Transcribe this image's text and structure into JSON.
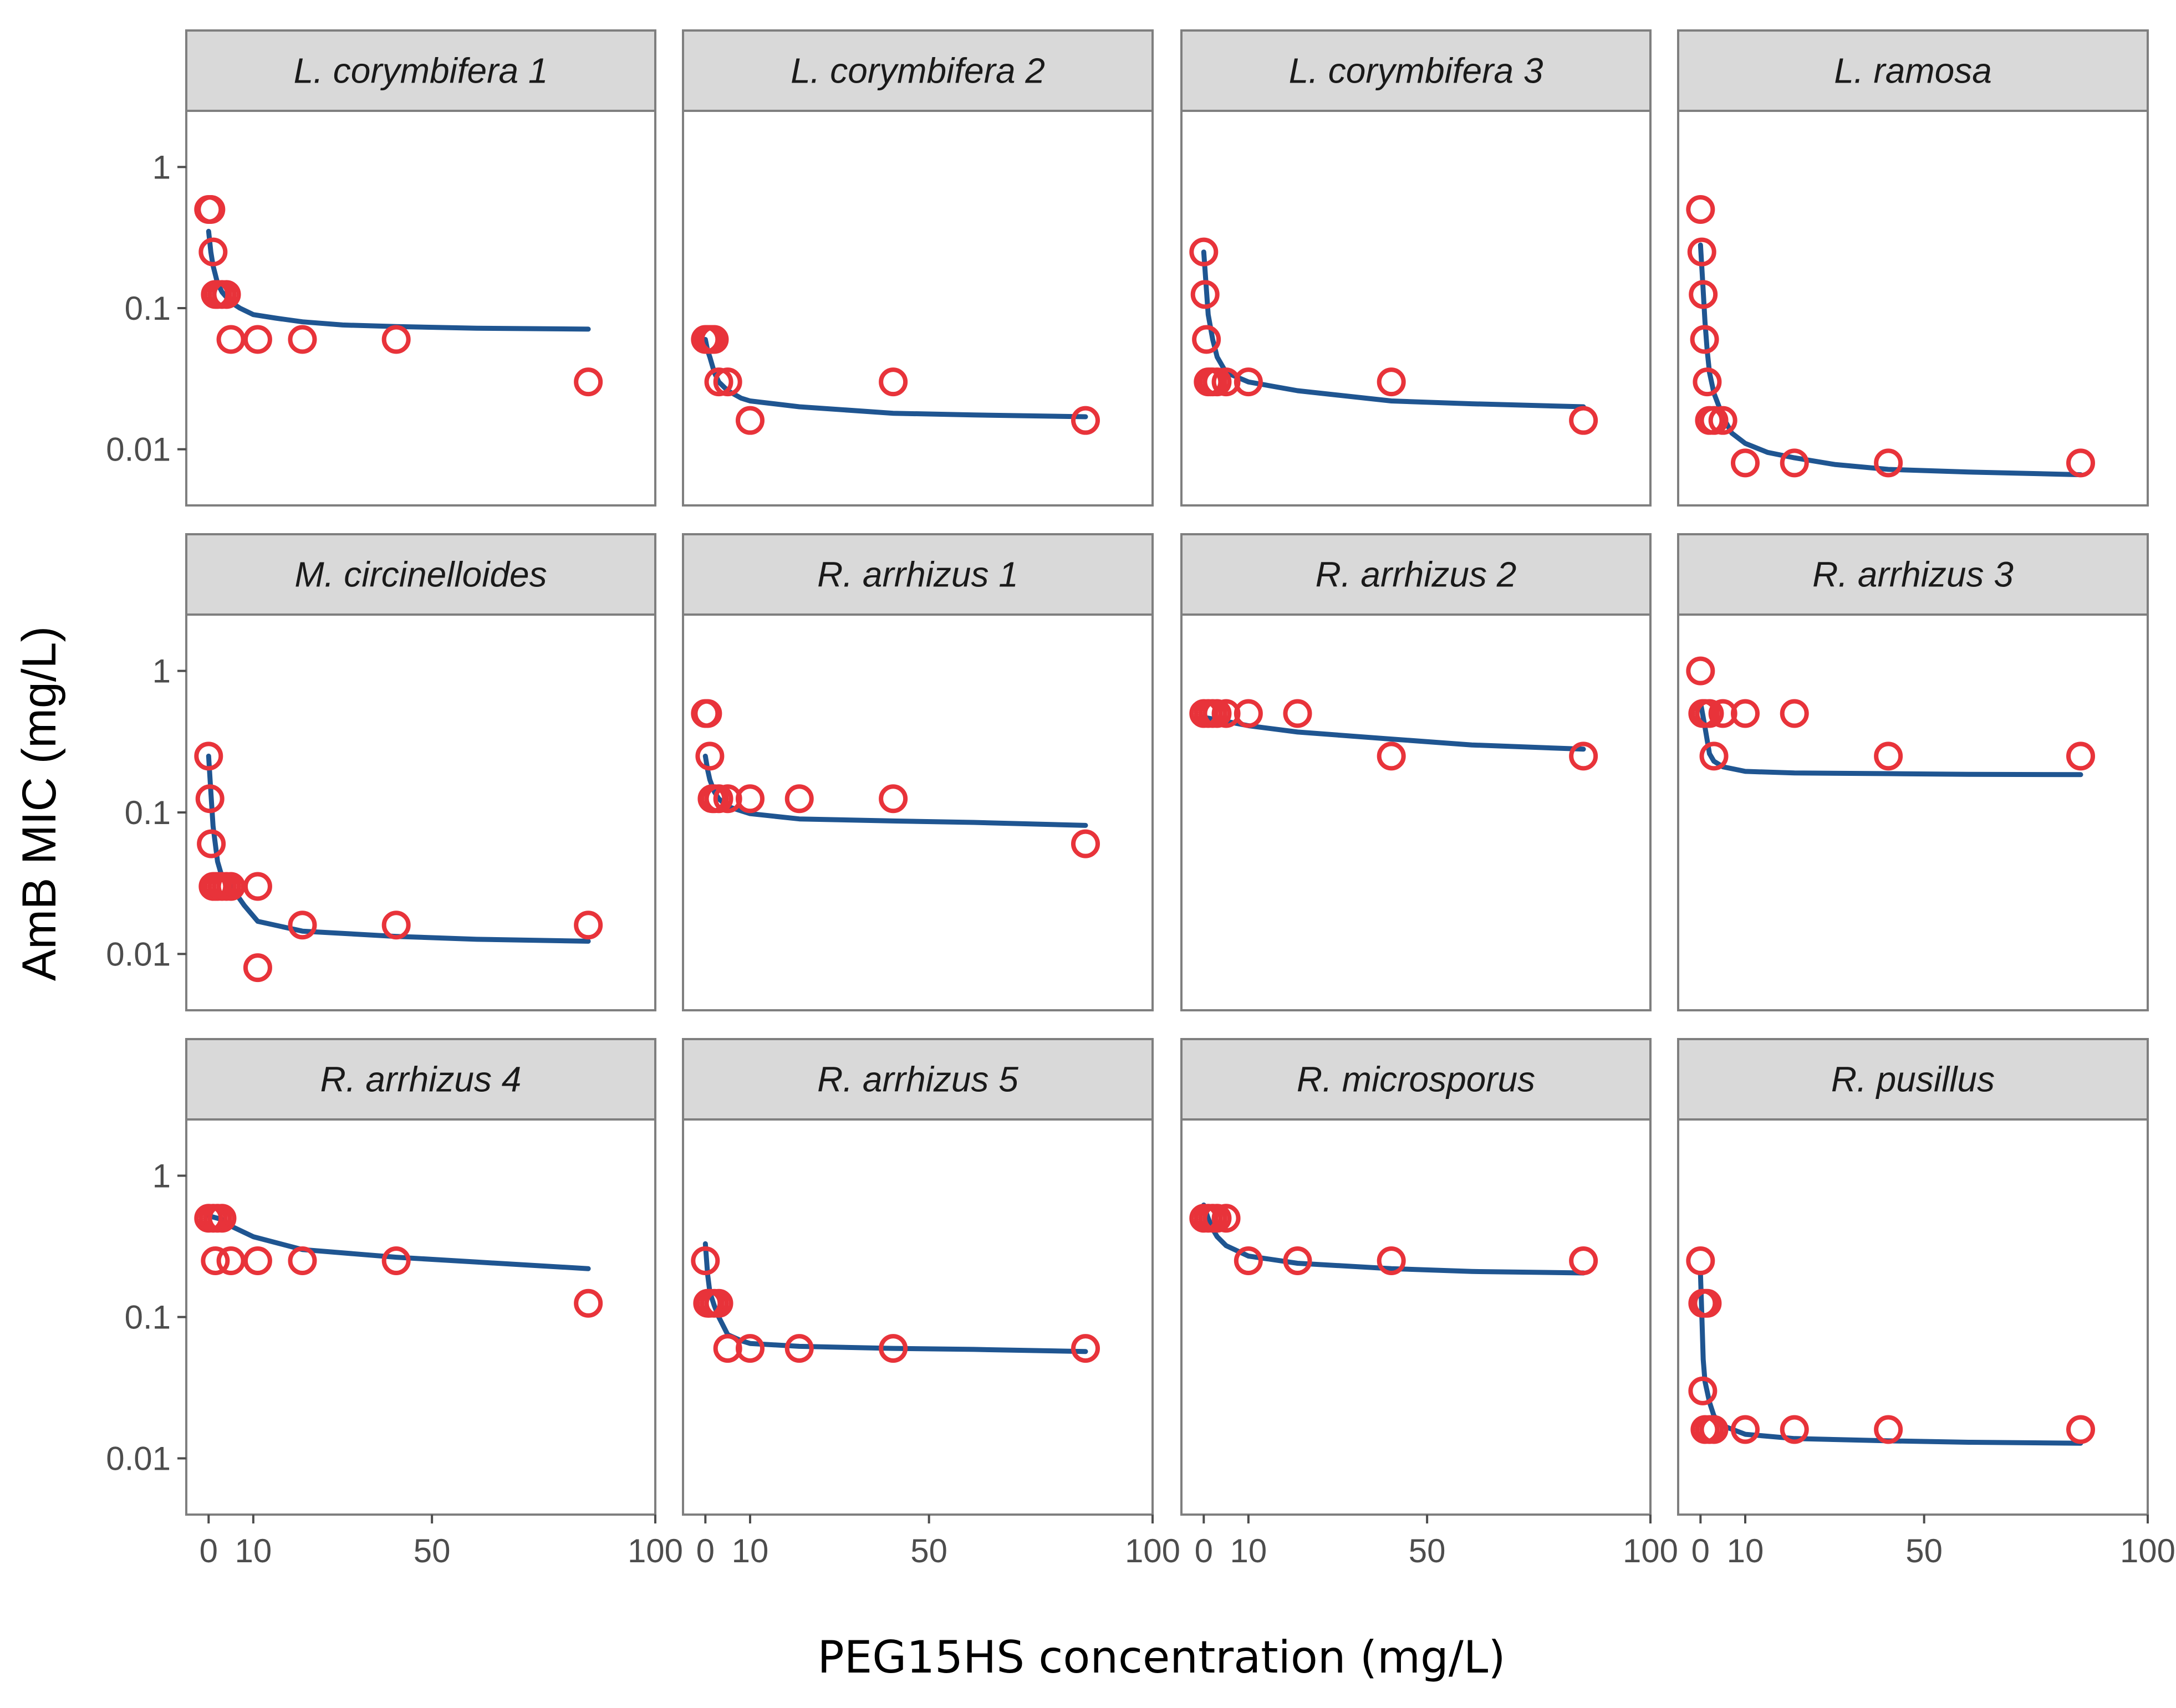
{
  "chart_data": {
    "type": "scatter",
    "layout": "facet-grid 3x4",
    "xlabel": "PEG15HS concentration (mg/L)",
    "ylabel": "AmB MIC (mg/L)",
    "xlim": [
      -5,
      100
    ],
    "ylim": [
      0.004,
      2.5
    ],
    "yscale": "log",
    "x_ticks": [
      0,
      10,
      50,
      100
    ],
    "x_tick_labels": [
      "0",
      "10",
      "50",
      "100"
    ],
    "y_ticks": [
      0.01,
      0.1,
      1
    ],
    "y_tick_labels": [
      "0.01",
      "0.1",
      "1"
    ],
    "colors": {
      "points": "#e8333a",
      "fit_line": "#1f5591",
      "strip_fill": "#d9d9d9",
      "strip_border": "#7f7f7f",
      "panel_border": "#7f7f7f",
      "tick": "#4d4d4d"
    },
    "panels": [
      {
        "title": "L. corymbifera 1",
        "points": [
          [
            0,
            0.5
          ],
          [
            0.5,
            0.5
          ],
          [
            1,
            0.25
          ],
          [
            1.5,
            0.125
          ],
          [
            2,
            0.125
          ],
          [
            3,
            0.125
          ],
          [
            4,
            0.125
          ],
          [
            5,
            0.06
          ],
          [
            11,
            0.06
          ],
          [
            21,
            0.06
          ],
          [
            42,
            0.06
          ],
          [
            85,
            0.03
          ]
        ],
        "fit": [
          [
            0,
            0.35
          ],
          [
            0.5,
            0.25
          ],
          [
            1,
            0.2
          ],
          [
            2,
            0.15
          ],
          [
            3,
            0.13
          ],
          [
            5,
            0.11
          ],
          [
            7,
            0.1
          ],
          [
            10,
            0.09
          ],
          [
            15,
            0.085
          ],
          [
            21,
            0.08
          ],
          [
            30,
            0.076
          ],
          [
            42,
            0.074
          ],
          [
            60,
            0.072
          ],
          [
            85,
            0.071
          ]
        ]
      },
      {
        "title": "L. corymbifera 2",
        "points": [
          [
            0,
            0.06
          ],
          [
            0.5,
            0.06
          ],
          [
            1,
            0.06
          ],
          [
            1.5,
            0.06
          ],
          [
            2,
            0.06
          ],
          [
            3,
            0.03
          ],
          [
            5,
            0.03
          ],
          [
            10,
            0.016
          ],
          [
            42,
            0.03
          ],
          [
            85,
            0.016
          ]
        ],
        "fit": [
          [
            0,
            0.06
          ],
          [
            0.5,
            0.05
          ],
          [
            1,
            0.045
          ],
          [
            2,
            0.035
          ],
          [
            3,
            0.03
          ],
          [
            5,
            0.026
          ],
          [
            8,
            0.023
          ],
          [
            10,
            0.022
          ],
          [
            21,
            0.02
          ],
          [
            42,
            0.018
          ],
          [
            60,
            0.0175
          ],
          [
            85,
            0.017
          ]
        ]
      },
      {
        "title": "L. corymbifera 3",
        "points": [
          [
            0,
            0.25
          ],
          [
            0.3,
            0.125
          ],
          [
            0.6,
            0.06
          ],
          [
            1,
            0.03
          ],
          [
            1.5,
            0.03
          ],
          [
            2,
            0.03
          ],
          [
            3,
            0.03
          ],
          [
            5,
            0.03
          ],
          [
            10,
            0.03
          ],
          [
            42,
            0.03
          ],
          [
            85,
            0.016
          ]
        ],
        "fit": [
          [
            0,
            0.25
          ],
          [
            0.5,
            0.15
          ],
          [
            1,
            0.09
          ],
          [
            2,
            0.06
          ],
          [
            3,
            0.045
          ],
          [
            5,
            0.035
          ],
          [
            10,
            0.03
          ],
          [
            21,
            0.026
          ],
          [
            42,
            0.022
          ],
          [
            60,
            0.021
          ],
          [
            85,
            0.02
          ]
        ]
      },
      {
        "title": "L. ramosa",
        "points": [
          [
            0,
            0.5
          ],
          [
            0.3,
            0.25
          ],
          [
            0.6,
            0.125
          ],
          [
            0.9,
            0.06
          ],
          [
            1.5,
            0.03
          ],
          [
            2,
            0.016
          ],
          [
            3,
            0.016
          ],
          [
            5,
            0.016
          ],
          [
            10,
            0.008
          ],
          [
            21,
            0.008
          ],
          [
            42,
            0.008
          ],
          [
            85,
            0.008
          ]
        ],
        "fit": [
          [
            0,
            0.28
          ],
          [
            0.5,
            0.15
          ],
          [
            1,
            0.08
          ],
          [
            1.5,
            0.05
          ],
          [
            2,
            0.035
          ],
          [
            3,
            0.025
          ],
          [
            5,
            0.017
          ],
          [
            7,
            0.013
          ],
          [
            10,
            0.011
          ],
          [
            15,
            0.0095
          ],
          [
            21,
            0.0087
          ],
          [
            30,
            0.0078
          ],
          [
            42,
            0.0072
          ],
          [
            60,
            0.0069
          ],
          [
            85,
            0.0066
          ]
        ]
      },
      {
        "title": "M. circinelloides",
        "points": [
          [
            0,
            0.25
          ],
          [
            0.3,
            0.125
          ],
          [
            0.6,
            0.06
          ],
          [
            1,
            0.03
          ],
          [
            1.5,
            0.03
          ],
          [
            2,
            0.03
          ],
          [
            3,
            0.03
          ],
          [
            4,
            0.03
          ],
          [
            5,
            0.03
          ],
          [
            11,
            0.03
          ],
          [
            11,
            0.008
          ],
          [
            21,
            0.016
          ],
          [
            42,
            0.016
          ],
          [
            85,
            0.016
          ]
        ],
        "fit": [
          [
            0,
            0.25
          ],
          [
            0.5,
            0.14
          ],
          [
            1,
            0.08
          ],
          [
            2,
            0.045
          ],
          [
            3,
            0.035
          ],
          [
            5,
            0.03
          ],
          [
            8,
            0.022
          ],
          [
            11,
            0.017
          ],
          [
            21,
            0.0145
          ],
          [
            42,
            0.0133
          ],
          [
            60,
            0.0127
          ],
          [
            85,
            0.0123
          ]
        ]
      },
      {
        "title": "R. arrhizus 1",
        "points": [
          [
            0,
            0.5
          ],
          [
            0.5,
            0.5
          ],
          [
            1,
            0.25
          ],
          [
            1.5,
            0.125
          ],
          [
            2,
            0.125
          ],
          [
            3,
            0.125
          ],
          [
            5,
            0.125
          ],
          [
            10,
            0.125
          ],
          [
            21,
            0.125
          ],
          [
            42,
            0.125
          ],
          [
            85,
            0.06
          ]
        ],
        "fit": [
          [
            0,
            0.25
          ],
          [
            0.5,
            0.2
          ],
          [
            1,
            0.17
          ],
          [
            2,
            0.14
          ],
          [
            3,
            0.125
          ],
          [
            5,
            0.11
          ],
          [
            10,
            0.098
          ],
          [
            21,
            0.09
          ],
          [
            42,
            0.087
          ],
          [
            60,
            0.085
          ],
          [
            85,
            0.081
          ]
        ]
      },
      {
        "title": "R. arrhizus 2",
        "points": [
          [
            0,
            0.5
          ],
          [
            1,
            0.5
          ],
          [
            2,
            0.5
          ],
          [
            3,
            0.5
          ],
          [
            5,
            0.5
          ],
          [
            10,
            0.5
          ],
          [
            21,
            0.5
          ],
          [
            42,
            0.25
          ],
          [
            85,
            0.25
          ]
        ],
        "fit": [
          [
            0,
            0.47
          ],
          [
            5,
            0.44
          ],
          [
            10,
            0.41
          ],
          [
            21,
            0.37
          ],
          [
            42,
            0.33
          ],
          [
            60,
            0.3
          ],
          [
            85,
            0.28
          ]
        ]
      },
      {
        "title": "R. arrhizus 3",
        "points": [
          [
            0,
            1
          ],
          [
            0.5,
            0.5
          ],
          [
            1,
            0.5
          ],
          [
            2,
            0.5
          ],
          [
            5,
            0.5
          ],
          [
            10,
            0.5
          ],
          [
            21,
            0.5
          ],
          [
            3,
            0.25
          ],
          [
            42,
            0.25
          ],
          [
            85,
            0.25
          ]
        ],
        "fit": [
          [
            0,
            0.6
          ],
          [
            1,
            0.4
          ],
          [
            2,
            0.26
          ],
          [
            3,
            0.23
          ],
          [
            5,
            0.21
          ],
          [
            10,
            0.195
          ],
          [
            21,
            0.19
          ],
          [
            42,
            0.188
          ],
          [
            60,
            0.186
          ],
          [
            85,
            0.185
          ]
        ]
      },
      {
        "title": "R. arrhizus 4",
        "points": [
          [
            0,
            0.5
          ],
          [
            1,
            0.5
          ],
          [
            2,
            0.5
          ],
          [
            3,
            0.5
          ],
          [
            1.5,
            0.25
          ],
          [
            5,
            0.25
          ],
          [
            11,
            0.25
          ],
          [
            21,
            0.25
          ],
          [
            42,
            0.25
          ],
          [
            85,
            0.125
          ]
        ],
        "fit": [
          [
            0,
            0.52
          ],
          [
            3,
            0.49
          ],
          [
            5,
            0.44
          ],
          [
            10,
            0.37
          ],
          [
            21,
            0.3
          ],
          [
            42,
            0.265
          ],
          [
            60,
            0.245
          ],
          [
            85,
            0.22
          ]
        ]
      },
      {
        "title": "R. arrhizus 5",
        "points": [
          [
            0,
            0.25
          ],
          [
            0.5,
            0.125
          ],
          [
            1,
            0.125
          ],
          [
            2,
            0.125
          ],
          [
            3,
            0.125
          ],
          [
            5,
            0.06
          ],
          [
            10,
            0.06
          ],
          [
            21,
            0.06
          ],
          [
            42,
            0.06
          ],
          [
            85,
            0.06
          ]
        ],
        "fit": [
          [
            0,
            0.33
          ],
          [
            0.5,
            0.2
          ],
          [
            1,
            0.15
          ],
          [
            2,
            0.12
          ],
          [
            3,
            0.1
          ],
          [
            5,
            0.075
          ],
          [
            8,
            0.068
          ],
          [
            10,
            0.065
          ],
          [
            21,
            0.062
          ],
          [
            42,
            0.06
          ],
          [
            60,
            0.059
          ],
          [
            85,
            0.057
          ]
        ]
      },
      {
        "title": "R. microsporus",
        "points": [
          [
            0,
            0.5
          ],
          [
            1,
            0.5
          ],
          [
            2,
            0.5
          ],
          [
            3,
            0.5
          ],
          [
            5,
            0.5
          ],
          [
            10,
            0.25
          ],
          [
            21,
            0.25
          ],
          [
            42,
            0.25
          ],
          [
            85,
            0.25
          ]
        ],
        "fit": [
          [
            0,
            0.62
          ],
          [
            1,
            0.5
          ],
          [
            2,
            0.42
          ],
          [
            3,
            0.37
          ],
          [
            5,
            0.32
          ],
          [
            10,
            0.27
          ],
          [
            21,
            0.24
          ],
          [
            42,
            0.22
          ],
          [
            60,
            0.21
          ],
          [
            85,
            0.205
          ]
        ]
      },
      {
        "title": "R. pusillus",
        "points": [
          [
            0,
            0.25
          ],
          [
            0.5,
            0.125
          ],
          [
            1,
            0.125
          ],
          [
            1.5,
            0.125
          ],
          [
            0.5,
            0.03
          ],
          [
            1,
            0.016
          ],
          [
            2,
            0.016
          ],
          [
            3,
            0.016
          ],
          [
            10,
            0.016
          ],
          [
            21,
            0.016
          ],
          [
            42,
            0.016
          ],
          [
            85,
            0.016
          ]
        ],
        "fit": [
          [
            0,
            0.2
          ],
          [
            0.3,
            0.1
          ],
          [
            0.6,
            0.05
          ],
          [
            1,
            0.035
          ],
          [
            2,
            0.025
          ],
          [
            3,
            0.02
          ],
          [
            5,
            0.017
          ],
          [
            10,
            0.0148
          ],
          [
            21,
            0.0138
          ],
          [
            42,
            0.0133
          ],
          [
            60,
            0.013
          ],
          [
            85,
            0.0128
          ]
        ]
      }
    ]
  }
}
